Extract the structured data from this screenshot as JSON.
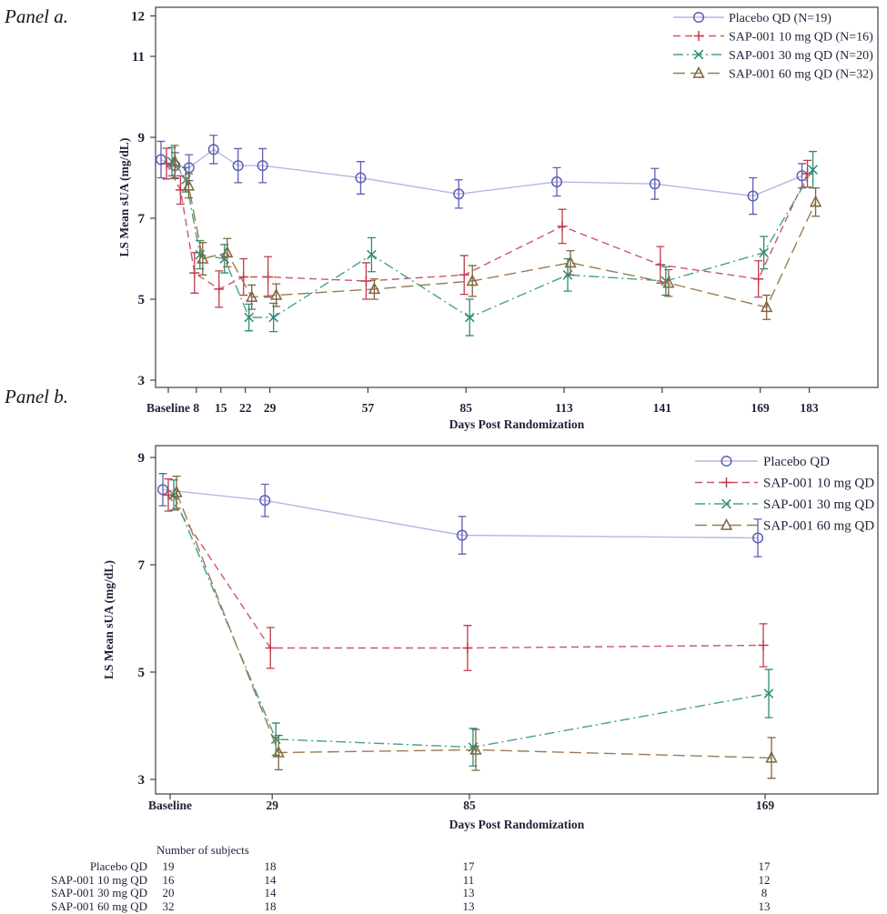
{
  "figure": {
    "background": "#ffffff",
    "text_color": "#1e2238",
    "frame_color": "#3f3f46"
  },
  "chart_data": [
    {
      "id": "panel_a",
      "type": "line",
      "panel_label": "Panel a.",
      "xlabel": "Days Post Randomization",
      "ylabel": "LS Mean sUA (mg/dL)",
      "ylim": [
        3,
        12
      ],
      "y_ticks": [
        "3",
        "5",
        "7",
        "9",
        "11",
        "12"
      ],
      "grid": "off",
      "legend_position": "top-right",
      "x_ticks": [
        {
          "day": 0,
          "label": "Baseline"
        },
        {
          "day": 8,
          "label": "8"
        },
        {
          "day": 15,
          "label": "15"
        },
        {
          "day": 22,
          "label": "22"
        },
        {
          "day": 29,
          "label": "29"
        },
        {
          "day": 57,
          "label": "57"
        },
        {
          "day": 85,
          "label": "85"
        },
        {
          "day": 113,
          "label": "113"
        },
        {
          "day": 141,
          "label": "141"
        },
        {
          "day": 169,
          "label": "169"
        },
        {
          "day": 183,
          "label": "183"
        }
      ],
      "x_days": [
        0,
        4,
        8,
        15,
        22,
        29,
        57,
        85,
        113,
        141,
        169,
        183
      ],
      "series": [
        {
          "name": "Placebo QD (N=19)",
          "marker": "circle",
          "linestyle": "solid",
          "color": "#5f5fb5",
          "line_color": "#b6b6e4",
          "values": [
            8.45,
            8.3,
            8.25,
            8.7,
            8.3,
            8.3,
            8.0,
            7.6,
            7.9,
            7.85,
            7.55,
            8.05
          ],
          "err": [
            0.45,
            0.32,
            0.32,
            0.35,
            0.42,
            0.42,
            0.4,
            0.35,
            0.35,
            0.38,
            0.45,
            0.3
          ]
        },
        {
          "name": "SAP-001 10 mg QD (N=16)",
          "marker": "plus",
          "linestyle": "dash",
          "color": "#c23b4b",
          "line_color": "#cf5560",
          "values": [
            8.35,
            7.7,
            5.65,
            5.25,
            5.55,
            5.55,
            5.45,
            5.6,
            6.8,
            5.85,
            5.5,
            8.1
          ],
          "err": [
            0.38,
            0.35,
            0.5,
            0.45,
            0.45,
            0.5,
            0.45,
            0.48,
            0.42,
            0.45,
            0.45,
            0.33
          ]
        },
        {
          "name": "SAP-001 30 mg QD (N=20)",
          "marker": "x",
          "linestyle": "dashdot",
          "color": "#2e8b74",
          "line_color": "#47a08a",
          "values": [
            8.4,
            7.95,
            6.1,
            6.0,
            4.55,
            4.55,
            6.1,
            4.55,
            5.6,
            5.45,
            6.15,
            8.2
          ],
          "err": [
            0.35,
            0.3,
            0.35,
            0.35,
            0.33,
            0.35,
            0.42,
            0.45,
            0.4,
            0.35,
            0.4,
            0.45
          ]
        },
        {
          "name": "SAP-001 60 mg QD (N=32)",
          "marker": "triangle",
          "linestyle": "longdash",
          "color": "#7f653f",
          "line_color": "#9a7b52",
          "values": [
            8.4,
            7.8,
            6.0,
            6.15,
            5.05,
            5.1,
            5.25,
            5.45,
            5.9,
            5.4,
            4.8,
            7.4
          ],
          "err": [
            0.4,
            0.3,
            0.4,
            0.35,
            0.3,
            0.28,
            0.25,
            0.38,
            0.3,
            0.33,
            0.3,
            0.35
          ]
        }
      ]
    },
    {
      "id": "panel_b",
      "type": "line",
      "panel_label": "Panel b.",
      "xlabel": "Days Post Randomization",
      "ylabel": "LS Mean sUA (mg/dL)",
      "ylim": [
        3,
        9
      ],
      "y_ticks": [
        "3",
        "5",
        "7",
        "9"
      ],
      "grid": "off",
      "legend_position": "top-right",
      "x_ticks": [
        {
          "day": 0,
          "label": "Baseline"
        },
        {
          "day": 29,
          "label": "29"
        },
        {
          "day": 85,
          "label": "85"
        },
        {
          "day": 169,
          "label": "169"
        }
      ],
      "x_days": [
        0,
        29,
        85,
        169
      ],
      "series": [
        {
          "name": "Placebo QD",
          "marker": "circle",
          "linestyle": "solid",
          "color": "#5f5fb5",
          "line_color": "#b6b6e4",
          "values": [
            8.4,
            8.2,
            7.55,
            7.5
          ],
          "err": [
            0.3,
            0.3,
            0.35,
            0.35
          ]
        },
        {
          "name": "SAP-001 10 mg QD",
          "marker": "plus",
          "linestyle": "dash",
          "color": "#c23b4b",
          "line_color": "#cf5560",
          "values": [
            8.3,
            5.45,
            5.45,
            5.5
          ],
          "err": [
            0.3,
            0.38,
            0.42,
            0.4
          ]
        },
        {
          "name": "SAP-001 30 mg QD",
          "marker": "x",
          "linestyle": "dashdot",
          "color": "#2e8b74",
          "line_color": "#47a08a",
          "values": [
            8.3,
            3.75,
            3.6,
            4.6
          ],
          "err": [
            0.28,
            0.3,
            0.35,
            0.45
          ]
        },
        {
          "name": "SAP-001 60 mg QD",
          "marker": "triangle",
          "linestyle": "longdash",
          "color": "#7f653f",
          "line_color": "#9a7b52",
          "values": [
            8.35,
            3.5,
            3.55,
            3.4
          ],
          "err": [
            0.3,
            0.32,
            0.38,
            0.38
          ]
        }
      ]
    }
  ],
  "subjects_table": {
    "title": "Number of subjects",
    "rows": [
      {
        "label": "Placebo QD",
        "counts": [
          "19",
          "18",
          "17",
          "17"
        ]
      },
      {
        "label": "SAP-001 10 mg QD",
        "counts": [
          "16",
          "14",
          "11",
          "12"
        ]
      },
      {
        "label": "SAP-001 30 mg QD",
        "counts": [
          "20",
          "14",
          "13",
          "8"
        ]
      },
      {
        "label": "SAP-001 60 mg QD",
        "counts": [
          "32",
          "18",
          "13",
          "13"
        ]
      }
    ]
  }
}
